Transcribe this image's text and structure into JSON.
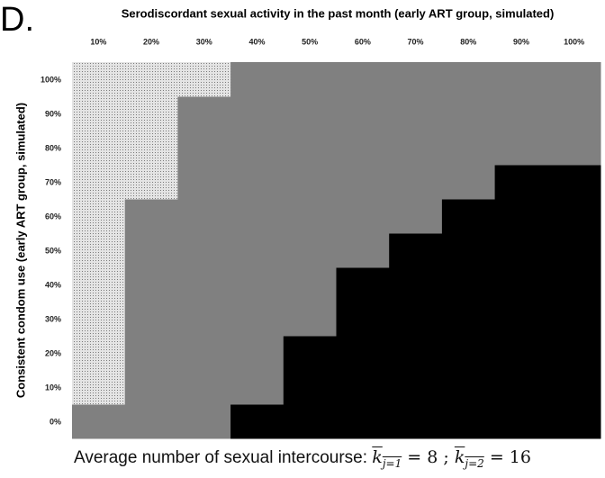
{
  "panel_label": "D.",
  "chart_data": {
    "type": "heatmap",
    "title": "Serodiscordant sexual activity in the past month (early ART group, simulated)",
    "y_label": "Consistent condom use (early ART group, simulated)",
    "x": [
      "10%",
      "20%",
      "30%",
      "40%",
      "50%",
      "60%",
      "70%",
      "80%",
      "90%",
      "100%"
    ],
    "y": [
      "0%",
      "10%",
      "20%",
      "30%",
      "40%",
      "50%",
      "60%",
      "70%",
      "80%",
      "90%",
      "100%"
    ],
    "z": [
      [
        1,
        1,
        1,
        2,
        2,
        2,
        2,
        2,
        2,
        2
      ],
      [
        0,
        1,
        1,
        1,
        2,
        2,
        2,
        2,
        2,
        2
      ],
      [
        0,
        1,
        1,
        1,
        2,
        2,
        2,
        2,
        2,
        2
      ],
      [
        0,
        1,
        1,
        1,
        1,
        2,
        2,
        2,
        2,
        2
      ],
      [
        0,
        1,
        1,
        1,
        1,
        2,
        2,
        2,
        2,
        2
      ],
      [
        0,
        1,
        1,
        1,
        1,
        1,
        2,
        2,
        2,
        2
      ],
      [
        0,
        1,
        1,
        1,
        1,
        1,
        1,
        2,
        2,
        2
      ],
      [
        0,
        0,
        1,
        1,
        1,
        1,
        1,
        1,
        2,
        2
      ],
      [
        0,
        0,
        1,
        1,
        1,
        1,
        1,
        1,
        1,
        1
      ],
      [
        0,
        0,
        1,
        1,
        1,
        1,
        1,
        1,
        1,
        1
      ],
      [
        0,
        0,
        0,
        1,
        1,
        1,
        1,
        1,
        1,
        1
      ]
    ],
    "colors": [
      "#dedede",
      "#808080",
      "#000000"
    ],
    "textures": [
      "dots",
      "solid",
      "solid"
    ]
  },
  "footer": {
    "label": "Average number of sexual intercourse:",
    "symbol": "k",
    "eq": "=",
    "sep": ";",
    "sub1": "j=1",
    "value1": 8,
    "sub2": "j=2",
    "value2": 16
  }
}
